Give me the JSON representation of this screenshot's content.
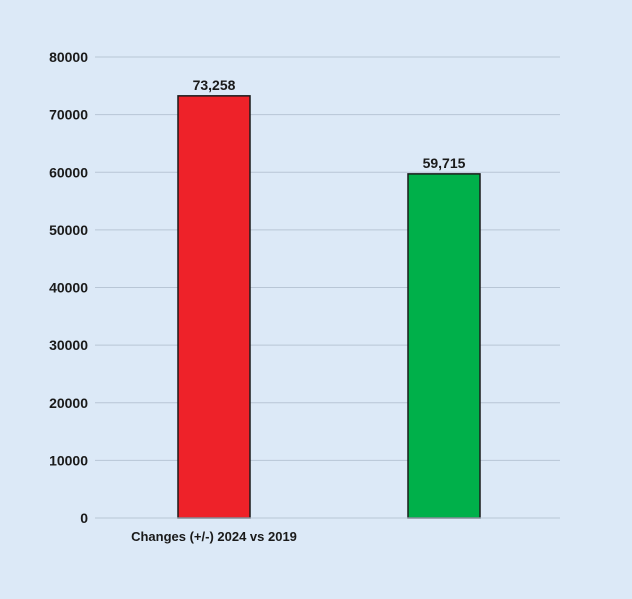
{
  "chart_data": {
    "type": "bar",
    "title": "",
    "xlabel": "",
    "ylabel": "",
    "ylim": [
      0,
      80000
    ],
    "yticks": [
      0,
      10000,
      20000,
      30000,
      40000,
      50000,
      60000,
      70000,
      80000
    ],
    "grid": true,
    "legend": "none",
    "category_label": "Changes (+/-) 2024 vs 2019",
    "bars": [
      {
        "value": 73258,
        "label": "73,258",
        "color": "#ee2229"
      },
      {
        "value": 59715,
        "label": "59,715",
        "color": "#00b04a"
      }
    ]
  },
  "colors": {
    "background": "#dce9f7",
    "gridline": "#b8c6d6",
    "bar_outline": "#1a1a1a",
    "text": "#1a1a1a"
  }
}
